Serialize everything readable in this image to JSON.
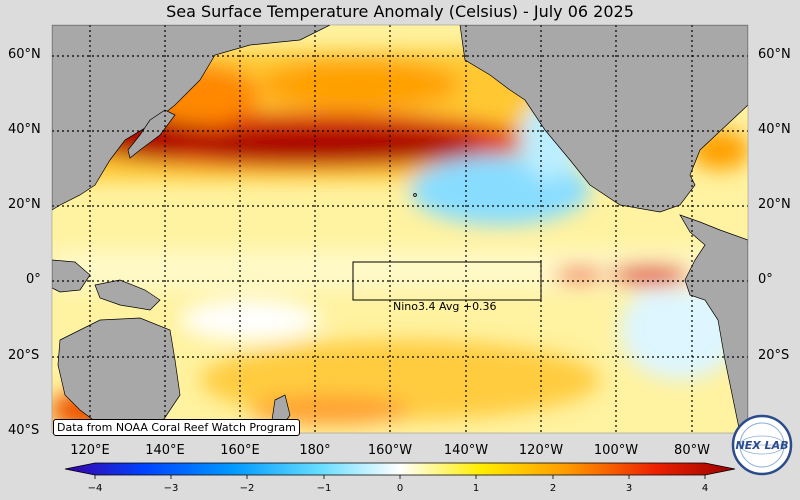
{
  "title": "Sea Surface Temperature Anomaly (Celsius) - July 06 2025",
  "lat_labels": [
    "60°N",
    "40°N",
    "20°N",
    "0°",
    "20°S",
    "40°S"
  ],
  "lon_labels": [
    "120°E",
    "140°E",
    "160°E",
    "180°",
    "160°W",
    "140°W",
    "120°W",
    "100°W",
    "80°W"
  ],
  "colorbar": {
    "ticks": [
      "−4",
      "−3",
      "−2",
      "−1",
      "0",
      "1",
      "2",
      "3",
      "4"
    ],
    "range": [
      -4,
      4
    ]
  },
  "nino_label": "Nino3.4 Avg +0.36",
  "credit": "Data from NOAA Coral Reef Watch Program",
  "logo_text": "NEX LAB",
  "colors": {
    "land": "#a8a8a8",
    "background": "#dcdcdc",
    "cold": "#55ddff",
    "neutral": "#ffffff",
    "warm": "#ffcc00",
    "hot": "#dd2200",
    "very_hot": "#a00000"
  }
}
